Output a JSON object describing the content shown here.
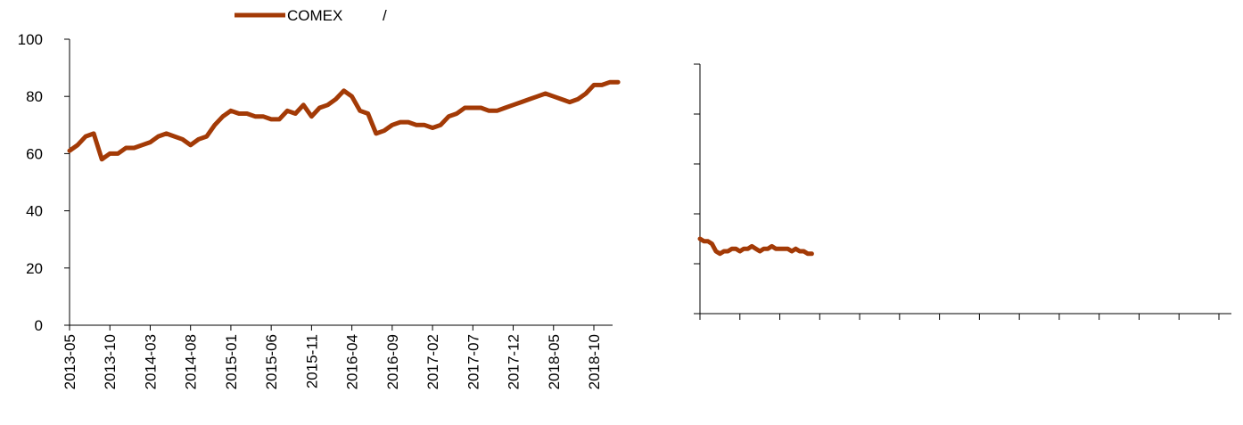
{
  "legend": {
    "label": "COMEX",
    "separator": "/"
  },
  "colors": {
    "series": "#A33A06",
    "axis": "#000000"
  },
  "chart_data": [
    {
      "type": "line",
      "x_type": "month",
      "ylim": [
        0,
        100
      ],
      "yticks": [
        0,
        20,
        40,
        60,
        80,
        100
      ],
      "xticks": [
        "2013-05",
        "2013-10",
        "2014-03",
        "2014-08",
        "2015-01",
        "2015-06",
        "2015-11",
        "2016-04",
        "2016-09",
        "2017-02",
        "2017-07",
        "2017-12",
        "2018-05",
        "2018-10"
      ],
      "series": [
        {
          "name": "COMEX",
          "points": [
            [
              "2013-05",
              61
            ],
            [
              "2013-06",
              63
            ],
            [
              "2013-07",
              66
            ],
            [
              "2013-08",
              67
            ],
            [
              "2013-09",
              58
            ],
            [
              "2013-10",
              60
            ],
            [
              "2013-11",
              60
            ],
            [
              "2013-12",
              62
            ],
            [
              "2014-01",
              62
            ],
            [
              "2014-02",
              63
            ],
            [
              "2014-03",
              64
            ],
            [
              "2014-04",
              66
            ],
            [
              "2014-05",
              67
            ],
            [
              "2014-06",
              66
            ],
            [
              "2014-07",
              65
            ],
            [
              "2014-08",
              63
            ],
            [
              "2014-09",
              65
            ],
            [
              "2014-10",
              66
            ],
            [
              "2014-11",
              70
            ],
            [
              "2014-12",
              73
            ],
            [
              "2015-01",
              75
            ],
            [
              "2015-02",
              74
            ],
            [
              "2015-03",
              74
            ],
            [
              "2015-04",
              73
            ],
            [
              "2015-05",
              73
            ],
            [
              "2015-06",
              72
            ],
            [
              "2015-07",
              72
            ],
            [
              "2015-08",
              75
            ],
            [
              "2015-09",
              74
            ],
            [
              "2015-10",
              77
            ],
            [
              "2015-11",
              73
            ],
            [
              "2015-12",
              76
            ],
            [
              "2016-01",
              77
            ],
            [
              "2016-02",
              79
            ],
            [
              "2016-03",
              82
            ],
            [
              "2016-04",
              80
            ],
            [
              "2016-05",
              75
            ],
            [
              "2016-06",
              74
            ],
            [
              "2016-07",
              67
            ],
            [
              "2016-08",
              68
            ],
            [
              "2016-09",
              70
            ],
            [
              "2016-10",
              71
            ],
            [
              "2016-11",
              71
            ],
            [
              "2016-12",
              70
            ],
            [
              "2017-01",
              70
            ],
            [
              "2017-02",
              69
            ],
            [
              "2017-03",
              70
            ],
            [
              "2017-04",
              73
            ],
            [
              "2017-05",
              74
            ],
            [
              "2017-06",
              76
            ],
            [
              "2017-07",
              76
            ],
            [
              "2017-08",
              76
            ],
            [
              "2017-09",
              75
            ],
            [
              "2017-10",
              75
            ],
            [
              "2017-11",
              76
            ],
            [
              "2017-12",
              77
            ],
            [
              "2018-01",
              78
            ],
            [
              "2018-02",
              79
            ],
            [
              "2018-03",
              80
            ],
            [
              "2018-04",
              81
            ],
            [
              "2018-05",
              80
            ],
            [
              "2018-06",
              79
            ],
            [
              "2018-07",
              78
            ],
            [
              "2018-08",
              79
            ],
            [
              "2018-09",
              81
            ],
            [
              "2018-10",
              84
            ],
            [
              "2018-11",
              84
            ],
            [
              "2018-12",
              85
            ],
            [
              "2019-01",
              85
            ]
          ]
        }
      ]
    },
    {
      "type": "line",
      "category_count": 14,
      "ylim": [
        0,
        100
      ],
      "series": [
        {
          "name": "",
          "x": [
            0,
            0.1,
            0.2,
            0.3,
            0.4,
            0.5,
            0.6,
            0.7,
            0.8,
            0.9,
            1.0,
            1.1,
            1.2,
            1.3,
            1.4,
            1.5,
            1.6,
            1.7,
            1.8,
            1.9,
            2.0,
            2.1,
            2.2,
            2.3,
            2.4,
            2.5,
            2.6,
            2.7,
            2.8
          ],
          "values": [
            30,
            29,
            29,
            28,
            25,
            24,
            25,
            25,
            26,
            26,
            25,
            26,
            26,
            27,
            26,
            25,
            26,
            26,
            27,
            26,
            26,
            26,
            26,
            25,
            26,
            25,
            25,
            24,
            24
          ]
        }
      ]
    }
  ]
}
